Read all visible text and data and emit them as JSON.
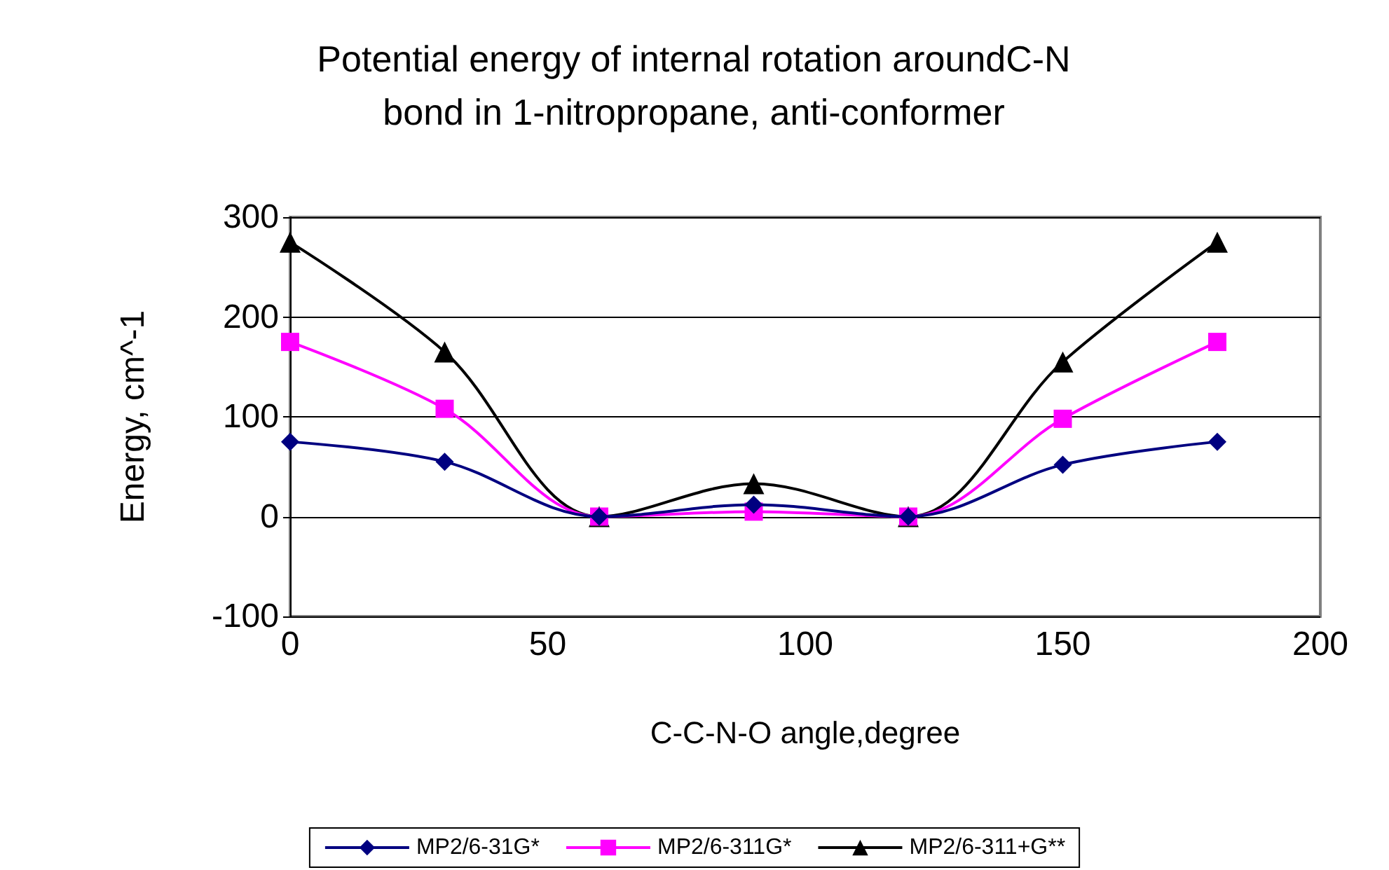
{
  "chart_data": {
    "type": "line",
    "title": "Potential energy of internal rotation aroundC-N\nbond in 1-nitropropane, anti-conformer",
    "xlabel": "C-C-N-O angle,degree",
    "ylabel": "Energy, cm^-1",
    "x": [
      0,
      30,
      60,
      90,
      120,
      150,
      180
    ],
    "series": [
      {
        "name": "MP2/6-31G*",
        "color": "#000080",
        "marker": "diamond",
        "values": [
          75,
          55,
          0,
          12,
          0,
          52,
          75
        ]
      },
      {
        "name": "MP2/6-311G*",
        "color": "#ff00ff",
        "marker": "square",
        "values": [
          175,
          108,
          0,
          5,
          0,
          98,
          175
        ]
      },
      {
        "name": "MP2/6-311+G**",
        "color": "#000000",
        "marker": "triangle",
        "values": [
          275,
          165,
          0,
          33,
          0,
          155,
          275
        ]
      }
    ],
    "xlim": [
      0,
      200
    ],
    "xticks": [
      0,
      50,
      100,
      150,
      200
    ],
    "ylim": [
      -100,
      300
    ],
    "yticks": [
      -100,
      0,
      100,
      200,
      300
    ],
    "grid": "y",
    "legend": "bottom",
    "line_style": "solid"
  }
}
